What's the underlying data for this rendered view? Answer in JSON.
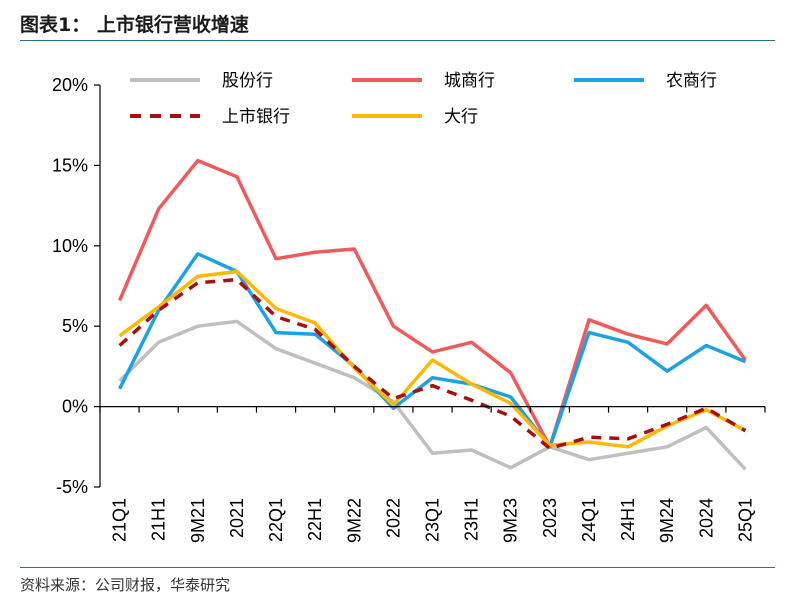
{
  "title": "图表1：  上市银行营收增速",
  "source": "资料来源：公司财报，华泰研究",
  "chart_data": {
    "type": "line",
    "title": "上市银行营收增速",
    "xlabel": "",
    "ylabel": "",
    "ylim": [
      -5,
      20
    ],
    "yticks": [
      -5,
      0,
      5,
      10,
      15,
      20
    ],
    "ytick_labels": [
      "-5%",
      "0%",
      "5%",
      "10%",
      "15%",
      "20%"
    ],
    "grid": false,
    "legend_position": "top",
    "categories": [
      "21Q1",
      "21H1",
      "9M21",
      "2021",
      "22Q1",
      "22H1",
      "9M22",
      "2022",
      "23Q1",
      "23H1",
      "9M23",
      "2023",
      "24Q1",
      "24H1",
      "9M24",
      "2024",
      "25Q1"
    ],
    "series": [
      {
        "name": "股份行",
        "color": "#BFBFBF",
        "dash": false,
        "values": [
          1.6,
          4.0,
          5.0,
          5.3,
          3.6,
          2.7,
          1.8,
          0.3,
          -2.9,
          -2.7,
          -3.8,
          -2.5,
          -3.3,
          -2.9,
          -2.5,
          -1.3,
          -3.9
        ]
      },
      {
        "name": "城商行",
        "color": "#F05A5A",
        "dash": false,
        "values": [
          6.6,
          12.3,
          15.3,
          14.3,
          9.2,
          9.6,
          9.8,
          5.0,
          3.4,
          4.0,
          2.1,
          -2.5,
          5.4,
          4.5,
          3.9,
          6.3,
          2.9
        ]
      },
      {
        "name": "农商行",
        "color": "#1DA1E6",
        "dash": false,
        "values": [
          1.1,
          6.0,
          9.5,
          8.4,
          4.6,
          4.5,
          2.5,
          -0.1,
          1.8,
          1.4,
          0.6,
          -2.5,
          4.6,
          4.0,
          2.2,
          3.8,
          2.8
        ]
      },
      {
        "name": "上市银行",
        "color": "#A50F0F",
        "dash": true,
        "values": [
          3.8,
          6.0,
          7.7,
          7.9,
          5.6,
          4.8,
          2.5,
          0.5,
          1.3,
          0.4,
          -0.6,
          -2.6,
          -1.9,
          -2.0,
          -1.1,
          -0.1,
          -1.5
        ]
      },
      {
        "name": "大行",
        "color": "#FFB800",
        "dash": false,
        "values": [
          4.4,
          6.2,
          8.1,
          8.4,
          6.1,
          5.2,
          2.4,
          0.1,
          2.9,
          1.4,
          0.2,
          -2.4,
          -2.2,
          -2.5,
          -1.2,
          -0.2,
          -1.5
        ]
      }
    ]
  }
}
